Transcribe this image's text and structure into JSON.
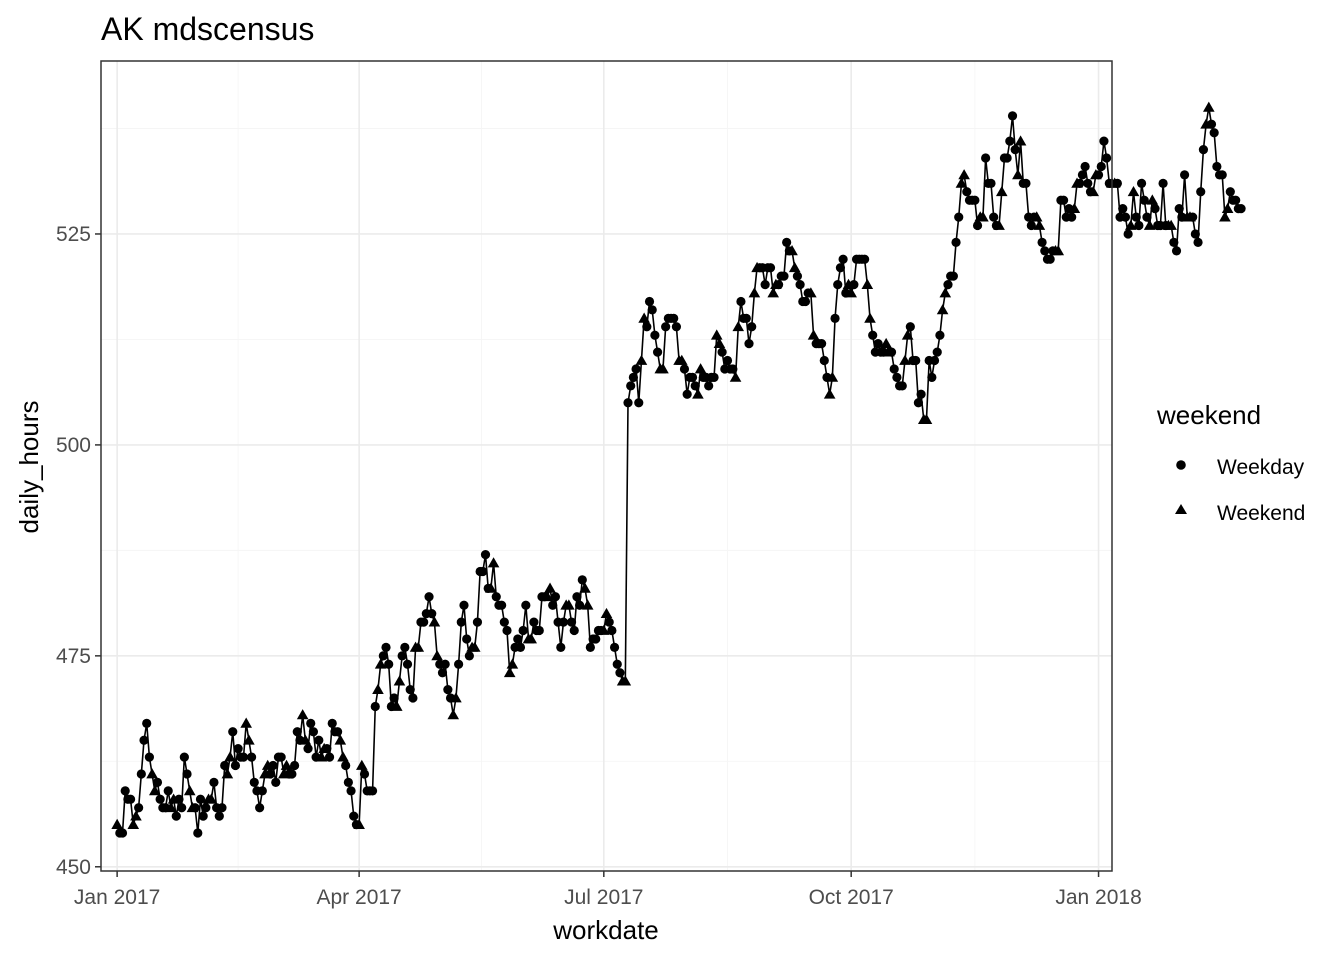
{
  "chart_data": {
    "type": "line",
    "title": "AK mdscensus",
    "xlabel": "workdate",
    "ylabel": "daily_hours",
    "x_type": "date",
    "xlim": [
      "2016-12-26",
      "2018-01-06"
    ],
    "ylim": [
      449.5,
      545.5
    ],
    "x_ticks": [
      {
        "date": "2017-01-01",
        "label": "Jan 2017"
      },
      {
        "date": "2017-04-01",
        "label": "Apr 2017"
      },
      {
        "date": "2017-07-01",
        "label": "Jul 2017"
      },
      {
        "date": "2017-10-01",
        "label": "Oct 2017"
      },
      {
        "date": "2018-01-01",
        "label": "Jan 2018"
      }
    ],
    "y_ticks": [
      450,
      475,
      500,
      525
    ],
    "grid": true,
    "legend": {
      "title": "weekend",
      "position": "right",
      "entries": [
        {
          "label": "Weekday",
          "shape": "circle"
        },
        {
          "label": "Weekend",
          "shape": "triangle"
        }
      ]
    },
    "series": [
      {
        "name": "daily_hours",
        "start_date": "2017-01-01",
        "values": [
          455,
          454,
          454,
          459,
          458,
          458,
          455,
          456,
          457,
          461,
          465,
          467,
          463,
          461,
          459,
          460,
          458,
          457,
          457,
          459,
          457,
          458,
          456,
          458,
          457,
          463,
          461,
          459,
          457,
          457,
          454,
          458,
          456,
          457,
          458,
          458,
          460,
          457,
          456,
          457,
          462,
          461,
          463,
          466,
          462,
          464,
          463,
          463,
          467,
          465,
          463,
          460,
          459,
          457,
          459,
          461,
          462,
          461,
          462,
          460,
          463,
          463,
          461,
          462,
          461,
          461,
          462,
          466,
          465,
          468,
          465,
          464,
          467,
          466,
          463,
          465,
          463,
          464,
          464,
          463,
          467,
          466,
          466,
          465,
          463,
          462,
          460,
          459,
          456,
          455,
          455,
          462,
          461,
          459,
          459,
          459,
          469,
          471,
          474,
          475,
          476,
          474,
          469,
          470,
          469,
          472,
          475,
          476,
          474,
          471,
          470,
          476,
          476,
          479,
          479,
          480,
          482,
          480,
          479,
          475,
          474,
          473,
          474,
          471,
          470,
          468,
          470,
          474,
          479,
          481,
          477,
          475,
          476,
          476,
          479,
          485,
          485,
          487,
          483,
          483,
          486,
          482,
          481,
          481,
          479,
          478,
          473,
          474,
          476,
          477,
          476,
          478,
          481,
          477,
          477,
          479,
          478,
          478,
          482,
          482,
          482,
          483,
          481,
          482,
          479,
          476,
          479,
          481,
          481,
          479,
          478,
          482,
          481,
          484,
          483,
          481,
          476,
          477,
          477,
          478,
          478,
          478,
          480,
          479,
          478,
          476,
          474,
          473,
          472,
          472,
          505,
          507,
          508,
          509,
          505,
          510,
          515,
          514,
          517,
          516,
          513,
          511,
          509,
          509,
          514,
          515,
          515,
          515,
          514,
          510,
          510,
          509,
          506,
          508,
          508,
          507,
          506,
          509,
          508,
          508,
          507,
          508,
          508,
          513,
          512,
          511,
          509,
          510,
          509,
          509,
          508,
          514,
          517,
          515,
          515,
          512,
          514,
          518,
          521,
          521,
          521,
          519,
          521,
          521,
          518,
          519,
          519,
          520,
          520,
          524,
          523,
          523,
          521,
          520,
          519,
          517,
          517,
          518,
          518,
          513,
          512,
          512,
          512,
          510,
          508,
          506,
          508,
          515,
          519,
          521,
          522,
          518,
          519,
          518,
          519,
          522,
          522,
          522,
          522,
          519,
          515,
          513,
          511,
          512,
          511,
          511,
          512,
          511,
          511,
          509,
          508,
          507,
          507,
          510,
          513,
          514,
          510,
          510,
          505,
          506,
          503,
          503,
          510,
          508,
          510,
          511,
          513,
          516,
          518,
          519,
          520,
          520,
          524,
          527,
          531,
          532,
          530,
          529,
          529,
          529,
          526,
          527,
          527,
          534,
          531,
          531,
          527,
          526,
          526,
          530,
          534,
          534,
          536,
          539,
          535,
          532,
          536,
          531,
          531,
          527,
          526,
          527,
          527,
          526,
          524,
          523,
          522,
          522,
          523,
          523,
          523,
          529,
          529,
          527,
          528,
          527,
          528,
          531,
          531,
          532,
          533,
          531,
          530,
          530,
          532,
          532,
          533,
          536,
          534,
          531,
          531,
          531,
          531,
          527,
          528,
          527,
          525,
          526,
          530,
          527,
          526,
          531,
          529,
          527,
          526,
          529,
          528,
          526,
          526,
          531,
          526,
          526,
          526,
          524,
          523,
          528,
          527,
          532,
          527,
          527,
          527,
          525,
          524,
          530,
          535,
          538,
          540,
          538,
          537,
          533,
          532,
          532,
          527,
          528,
          530,
          529,
          529,
          528,
          528
        ]
      }
    ]
  }
}
